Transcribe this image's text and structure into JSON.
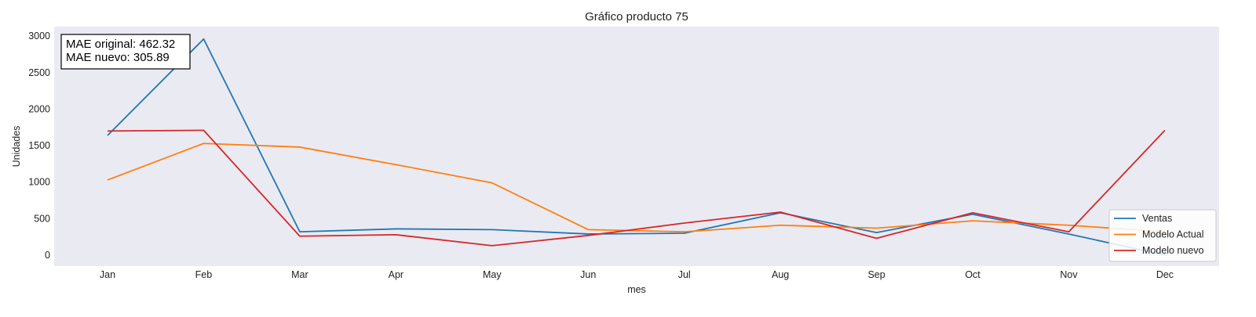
{
  "chart_data": {
    "type": "line",
    "title": "Gráfico producto 75",
    "xlabel": "mes",
    "ylabel": "Unidades",
    "categories": [
      "Jan",
      "Feb",
      "Mar",
      "Apr",
      "May",
      "Jun",
      "Jul",
      "Aug",
      "Sep",
      "Oct",
      "Nov",
      "Dec"
    ],
    "ylim": [
      -150,
      3130
    ],
    "yticks": [
      0,
      500,
      1000,
      1500,
      2000,
      2500,
      3000
    ],
    "grid": false,
    "legend_position": "bottom-right",
    "series": [
      {
        "name": "Ventas",
        "color": "#1f77b4",
        "values": [
          1640,
          2960,
          320,
          360,
          350,
          290,
          300,
          580,
          310,
          560,
          290,
          0
        ]
      },
      {
        "name": "Modelo Actual",
        "color": "#ff7f0e",
        "values": [
          1030,
          1530,
          1480,
          1240,
          990,
          350,
          320,
          410,
          370,
          470,
          410,
          320
        ]
      },
      {
        "name": "Modelo nuevo",
        "color": "#d62728",
        "values": [
          1700,
          1710,
          260,
          280,
          130,
          270,
          440,
          590,
          230,
          580,
          320,
          1710
        ]
      }
    ],
    "annotation": {
      "lines": [
        "MAE original: 462.32",
        "MAE nuevo: 305.89"
      ]
    }
  },
  "colors": {
    "plot_background": "#eaeaf2"
  }
}
